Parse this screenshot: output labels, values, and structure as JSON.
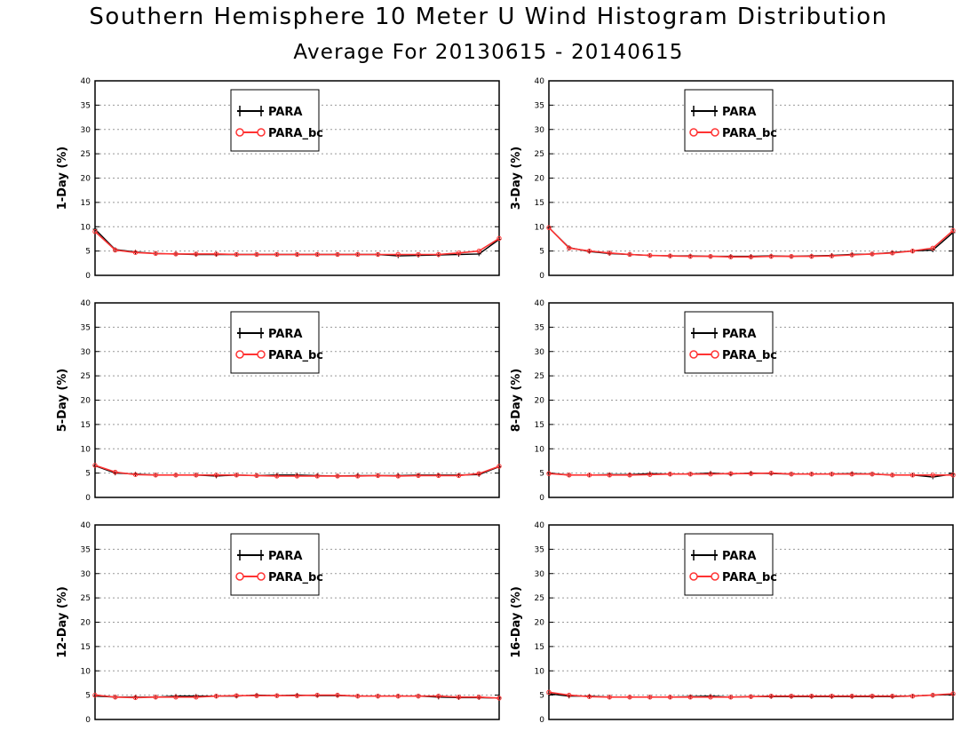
{
  "header": {
    "title": "Southern Hemisphere 10 Meter U Wind Histogram Distribution",
    "subtitle": "Average For 20130615 - 20140615"
  },
  "colors": {
    "para": "#000000",
    "para_bc": "#ff3333",
    "grid": "#999999"
  },
  "chart_data": [
    {
      "type": "line",
      "ylabel": "1-Day (%)",
      "ylim": [
        0,
        40
      ],
      "yticks": [
        0,
        5,
        10,
        15,
        20,
        25,
        30,
        35,
        40
      ],
      "x": [
        1,
        2,
        3,
        4,
        5,
        6,
        7,
        8,
        9,
        10,
        11,
        12,
        13,
        14,
        15,
        16,
        17,
        18,
        19,
        20,
        21
      ],
      "legend": [
        "PARA",
        "PARA_bc"
      ],
      "series": [
        {
          "name": "PARA",
          "values": [
            9.5,
            5.3,
            4.8,
            4.5,
            4.4,
            4.3,
            4.3,
            4.3,
            4.3,
            4.3,
            4.3,
            4.3,
            4.3,
            4.3,
            4.3,
            4.0,
            4.1,
            4.2,
            4.3,
            4.4,
            7.4
          ]
        },
        {
          "name": "PARA_bc",
          "values": [
            9.0,
            5.2,
            4.7,
            4.5,
            4.4,
            4.4,
            4.4,
            4.3,
            4.3,
            4.3,
            4.3,
            4.3,
            4.3,
            4.3,
            4.3,
            4.3,
            4.3,
            4.3,
            4.6,
            5.0,
            7.6
          ]
        }
      ]
    },
    {
      "type": "line",
      "ylabel": "3-Day (%)",
      "ylim": [
        0,
        40
      ],
      "yticks": [
        0,
        5,
        10,
        15,
        20,
        25,
        30,
        35,
        40
      ],
      "x": [
        1,
        2,
        3,
        4,
        5,
        6,
        7,
        8,
        9,
        10,
        11,
        12,
        13,
        14,
        15,
        16,
        17,
        18,
        19,
        20,
        21
      ],
      "legend": [
        "PARA",
        "PARA_bc"
      ],
      "series": [
        {
          "name": "PARA",
          "values": [
            9.8,
            5.7,
            4.9,
            4.5,
            4.3,
            4.1,
            4.0,
            4.0,
            3.9,
            3.9,
            3.9,
            4.0,
            3.9,
            4.0,
            4.1,
            4.3,
            4.4,
            4.7,
            5.0,
            5.2,
            8.8
          ]
        },
        {
          "name": "PARA_bc",
          "values": [
            9.8,
            5.6,
            5.0,
            4.6,
            4.3,
            4.1,
            4.0,
            3.9,
            3.9,
            3.8,
            3.8,
            3.9,
            3.9,
            3.9,
            4.0,
            4.2,
            4.4,
            4.6,
            5.0,
            5.6,
            9.2
          ]
        }
      ]
    },
    {
      "type": "line",
      "ylabel": "5-Day (%)",
      "ylim": [
        0,
        40
      ],
      "yticks": [
        0,
        5,
        10,
        15,
        20,
        25,
        30,
        35,
        40
      ],
      "x": [
        1,
        2,
        3,
        4,
        5,
        6,
        7,
        8,
        9,
        10,
        11,
        12,
        13,
        14,
        15,
        16,
        17,
        18,
        19,
        20,
        21
      ],
      "legend": [
        "PARA",
        "PARA_bc"
      ],
      "series": [
        {
          "name": "PARA",
          "values": [
            6.5,
            5.0,
            4.8,
            4.6,
            4.6,
            4.6,
            4.4,
            4.6,
            4.5,
            4.6,
            4.6,
            4.5,
            4.4,
            4.5,
            4.5,
            4.5,
            4.6,
            4.6,
            4.6,
            4.7,
            6.3
          ]
        },
        {
          "name": "PARA_bc",
          "values": [
            6.6,
            5.2,
            4.7,
            4.6,
            4.6,
            4.6,
            4.6,
            4.6,
            4.5,
            4.4,
            4.4,
            4.4,
            4.4,
            4.4,
            4.5,
            4.4,
            4.5,
            4.5,
            4.5,
            4.9,
            6.4
          ]
        }
      ]
    },
    {
      "type": "line",
      "ylabel": "8-Day (%)",
      "ylim": [
        0,
        40
      ],
      "yticks": [
        0,
        5,
        10,
        15,
        20,
        25,
        30,
        35,
        40
      ],
      "x": [
        1,
        2,
        3,
        4,
        5,
        6,
        7,
        8,
        9,
        10,
        11,
        12,
        13,
        14,
        15,
        16,
        17,
        18,
        19,
        20,
        21
      ],
      "legend": [
        "PARA",
        "PARA_bc"
      ],
      "series": [
        {
          "name": "PARA",
          "values": [
            5.0,
            4.6,
            4.6,
            4.7,
            4.7,
            4.9,
            4.8,
            4.8,
            5.0,
            4.8,
            5.0,
            4.9,
            4.8,
            4.8,
            4.8,
            4.9,
            4.8,
            4.6,
            4.6,
            4.2,
            4.8
          ]
        },
        {
          "name": "PARA_bc",
          "values": [
            4.9,
            4.6,
            4.6,
            4.6,
            4.6,
            4.7,
            4.8,
            4.8,
            4.8,
            4.9,
            4.9,
            5.0,
            4.8,
            4.8,
            4.8,
            4.8,
            4.8,
            4.6,
            4.6,
            4.6,
            4.6
          ]
        }
      ]
    },
    {
      "type": "line",
      "ylabel": "12-Day (%)",
      "ylim": [
        0,
        40
      ],
      "yticks": [
        0,
        5,
        10,
        15,
        20,
        25,
        30,
        35,
        40
      ],
      "x": [
        1,
        2,
        3,
        4,
        5,
        6,
        7,
        8,
        9,
        10,
        11,
        12,
        13,
        14,
        15,
        16,
        17,
        18,
        19,
        20,
        21
      ],
      "legend": [
        "PARA",
        "PARA_bc"
      ],
      "series": [
        {
          "name": "PARA",
          "values": [
            4.8,
            4.6,
            4.6,
            4.6,
            4.8,
            4.8,
            4.8,
            4.8,
            5.0,
            4.9,
            5.0,
            4.9,
            4.9,
            4.8,
            4.8,
            4.8,
            4.8,
            4.6,
            4.5,
            4.5,
            4.4
          ]
        },
        {
          "name": "PARA_bc",
          "values": [
            5.0,
            4.6,
            4.5,
            4.6,
            4.6,
            4.6,
            4.8,
            4.9,
            4.9,
            4.9,
            4.9,
            5.0,
            5.0,
            4.8,
            4.8,
            4.8,
            4.8,
            4.8,
            4.6,
            4.6,
            4.4
          ]
        }
      ]
    },
    {
      "type": "line",
      "ylabel": "16-Day (%)",
      "ylim": [
        0,
        40
      ],
      "yticks": [
        0,
        5,
        10,
        15,
        20,
        25,
        30,
        35,
        40
      ],
      "x": [
        1,
        2,
        3,
        4,
        5,
        6,
        7,
        8,
        9,
        10,
        11,
        12,
        13,
        14,
        15,
        16,
        17,
        18,
        19,
        20,
        21
      ],
      "legend": [
        "PARA",
        "PARA_bc"
      ],
      "series": [
        {
          "name": "PARA",
          "values": [
            5.3,
            4.8,
            4.8,
            4.6,
            4.6,
            4.6,
            4.6,
            4.7,
            4.8,
            4.6,
            4.7,
            4.7,
            4.7,
            4.7,
            4.7,
            4.7,
            4.7,
            4.7,
            4.8,
            5.0,
            5.1
          ]
        },
        {
          "name": "PARA_bc",
          "values": [
            5.6,
            5.0,
            4.7,
            4.6,
            4.6,
            4.6,
            4.6,
            4.6,
            4.6,
            4.6,
            4.7,
            4.8,
            4.8,
            4.8,
            4.8,
            4.8,
            4.8,
            4.8,
            4.8,
            5.0,
            5.3
          ]
        }
      ]
    }
  ]
}
